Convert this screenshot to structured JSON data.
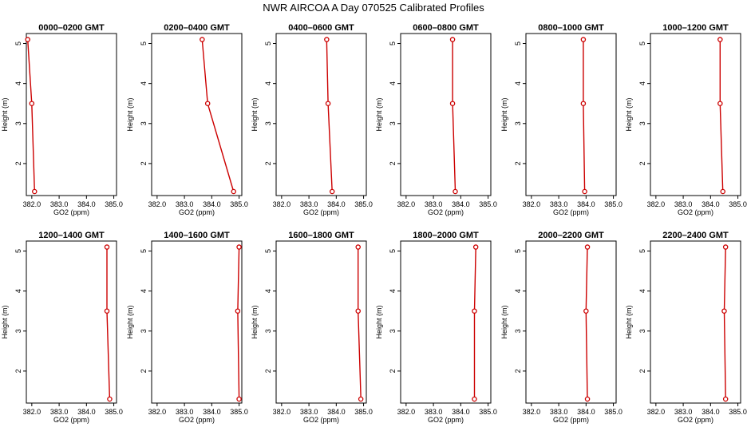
{
  "title": "NWR AIRCOA A  Day 070525  Calibrated Profiles",
  "colors": {
    "line": "#cc0000",
    "marker": "#cc0000",
    "axis": "#000000"
  },
  "chart_data": [
    {
      "type": "line",
      "title": "0000–0200 GMT",
      "xlabel": "GO2 (ppm)",
      "ylabel": "Height (m)",
      "xlim": [
        381.8,
        385.1
      ],
      "ylim": [
        1.2,
        5.25
      ],
      "xticks": [
        "382.0",
        "383.0",
        "384.0",
        "385.0"
      ],
      "yticks": [
        "2",
        "3",
        "4",
        "5"
      ],
      "series": [
        {
          "x": [
            382.1,
            382.0,
            381.85
          ],
          "y": [
            1.3,
            3.5,
            5.1
          ]
        }
      ]
    },
    {
      "type": "line",
      "title": "0200–0400 GMT",
      "xlabel": "GO2 (ppm)",
      "ylabel": "Height (m)",
      "xlim": [
        381.8,
        385.1
      ],
      "ylim": [
        1.2,
        5.25
      ],
      "xticks": [
        "382.0",
        "383.0",
        "384.0",
        "385.0"
      ],
      "yticks": [
        "2",
        "3",
        "4",
        "5"
      ],
      "series": [
        {
          "x": [
            384.8,
            383.85,
            383.65
          ],
          "y": [
            1.3,
            3.5,
            5.1
          ]
        }
      ]
    },
    {
      "type": "line",
      "title": "0400–0600 GMT",
      "xlabel": "GO2 (ppm)",
      "ylabel": "Height (m)",
      "xlim": [
        381.8,
        385.1
      ],
      "ylim": [
        1.2,
        5.25
      ],
      "xticks": [
        "382.0",
        "383.0",
        "384.0",
        "385.0"
      ],
      "yticks": [
        "2",
        "3",
        "4",
        "5"
      ],
      "series": [
        {
          "x": [
            383.85,
            383.7,
            383.65
          ],
          "y": [
            1.3,
            3.5,
            5.1
          ]
        }
      ]
    },
    {
      "type": "line",
      "title": "0600–0800 GMT",
      "xlabel": "GO2 (ppm)",
      "ylabel": "Height (m)",
      "xlim": [
        381.8,
        385.1
      ],
      "ylim": [
        1.2,
        5.25
      ],
      "xticks": [
        "382.0",
        "383.0",
        "384.0",
        "385.0"
      ],
      "yticks": [
        "2",
        "3",
        "4",
        "5"
      ],
      "series": [
        {
          "x": [
            383.8,
            383.7,
            383.7
          ],
          "y": [
            1.3,
            3.5,
            5.1
          ]
        }
      ]
    },
    {
      "type": "line",
      "title": "0800–1000 GMT",
      "xlabel": "GO2 (ppm)",
      "ylabel": "Height (m)",
      "xlim": [
        381.8,
        385.1
      ],
      "ylim": [
        1.2,
        5.25
      ],
      "xticks": [
        "382.0",
        "383.0",
        "384.0",
        "385.0"
      ],
      "yticks": [
        "2",
        "3",
        "4",
        "5"
      ],
      "series": [
        {
          "x": [
            383.95,
            383.9,
            383.9
          ],
          "y": [
            1.3,
            3.5,
            5.1
          ]
        }
      ]
    },
    {
      "type": "line",
      "title": "1000–1200 GMT",
      "xlabel": "GO2 (ppm)",
      "ylabel": "Height (m)",
      "xlim": [
        381.8,
        385.1
      ],
      "ylim": [
        1.2,
        5.25
      ],
      "xticks": [
        "382.0",
        "383.0",
        "384.0",
        "385.0"
      ],
      "yticks": [
        "2",
        "3",
        "4",
        "5"
      ],
      "series": [
        {
          "x": [
            384.45,
            384.35,
            384.35
          ],
          "y": [
            1.3,
            3.5,
            5.1
          ]
        }
      ]
    },
    {
      "type": "line",
      "title": "1200–1400 GMT",
      "xlabel": "GO2 (ppm)",
      "ylabel": "Height (m)",
      "xlim": [
        381.8,
        385.1
      ],
      "ylim": [
        1.2,
        5.25
      ],
      "xticks": [
        "382.0",
        "383.0",
        "384.0",
        "385.0"
      ],
      "yticks": [
        "2",
        "3",
        "4",
        "5"
      ],
      "series": [
        {
          "x": [
            384.85,
            384.75,
            384.75
          ],
          "y": [
            1.3,
            3.5,
            5.1
          ]
        }
      ]
    },
    {
      "type": "line",
      "title": "1400–1600 GMT",
      "xlabel": "GO2 (ppm)",
      "ylabel": "Height (m)",
      "xlim": [
        381.8,
        385.1
      ],
      "ylim": [
        1.2,
        5.25
      ],
      "xticks": [
        "382.0",
        "383.0",
        "384.0",
        "385.0"
      ],
      "yticks": [
        "2",
        "3",
        "4",
        "5"
      ],
      "series": [
        {
          "x": [
            385.0,
            384.95,
            385.0
          ],
          "y": [
            1.3,
            3.5,
            5.1
          ]
        }
      ]
    },
    {
      "type": "line",
      "title": "1600–1800 GMT",
      "xlabel": "GO2 (ppm)",
      "ylabel": "Height (m)",
      "xlim": [
        381.8,
        385.1
      ],
      "ylim": [
        1.2,
        5.25
      ],
      "xticks": [
        "382.0",
        "383.0",
        "384.0",
        "385.0"
      ],
      "yticks": [
        "2",
        "3",
        "4",
        "5"
      ],
      "series": [
        {
          "x": [
            384.9,
            384.8,
            384.8
          ],
          "y": [
            1.3,
            3.5,
            5.1
          ]
        }
      ]
    },
    {
      "type": "line",
      "title": "1800–2000 GMT",
      "xlabel": "GO2 (ppm)",
      "ylabel": "Height (m)",
      "xlim": [
        381.8,
        385.1
      ],
      "ylim": [
        1.2,
        5.25
      ],
      "xticks": [
        "382.0",
        "383.0",
        "384.0",
        "385.0"
      ],
      "yticks": [
        "2",
        "3",
        "4",
        "5"
      ],
      "series": [
        {
          "x": [
            384.5,
            384.5,
            384.55
          ],
          "y": [
            1.3,
            3.5,
            5.1
          ]
        }
      ]
    },
    {
      "type": "line",
      "title": "2000–2200 GMT",
      "xlabel": "GO2 (ppm)",
      "ylabel": "Height (m)",
      "xlim": [
        381.8,
        385.1
      ],
      "ylim": [
        1.2,
        5.25
      ],
      "xticks": [
        "382.0",
        "383.0",
        "384.0",
        "385.0"
      ],
      "yticks": [
        "2",
        "3",
        "4",
        "5"
      ],
      "series": [
        {
          "x": [
            384.05,
            384.0,
            384.05
          ],
          "y": [
            1.3,
            3.5,
            5.1
          ]
        }
      ]
    },
    {
      "type": "line",
      "title": "2200–2400 GMT",
      "xlabel": "GO2 (ppm)",
      "ylabel": "Height (m)",
      "xlim": [
        381.8,
        385.1
      ],
      "ylim": [
        1.2,
        5.25
      ],
      "xticks": [
        "382.0",
        "383.0",
        "384.0",
        "385.0"
      ],
      "yticks": [
        "2",
        "3",
        "4",
        "5"
      ],
      "series": [
        {
          "x": [
            384.55,
            384.5,
            384.55
          ],
          "y": [
            1.3,
            3.5,
            5.1
          ]
        }
      ]
    }
  ]
}
